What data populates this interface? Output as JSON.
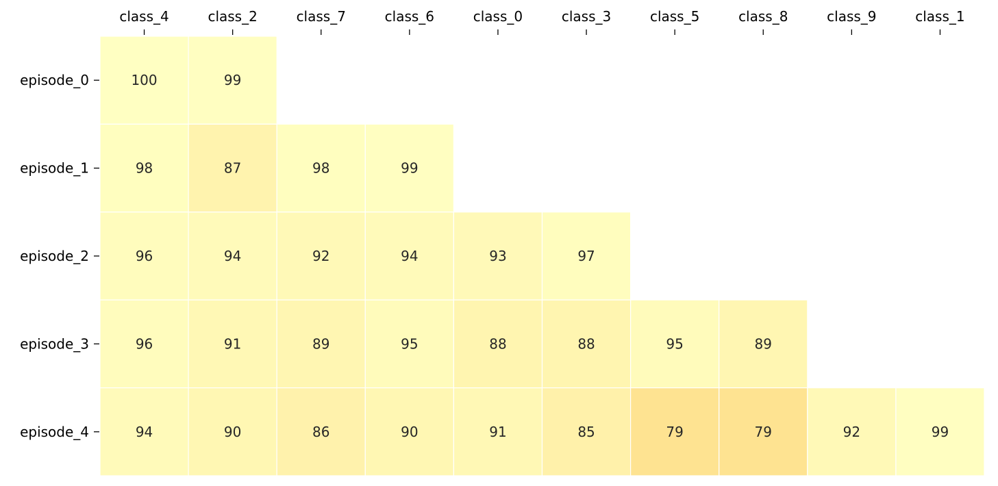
{
  "chart_data": {
    "type": "heatmap",
    "title": "",
    "xlabel": "",
    "ylabel": "",
    "x_tick_position": "top",
    "grid": false,
    "legend": "none",
    "columns": [
      "class_4",
      "class_2",
      "class_7",
      "class_6",
      "class_0",
      "class_3",
      "class_5",
      "class_8",
      "class_9",
      "class_1"
    ],
    "rows": [
      "episode_0",
      "episode_1",
      "episode_2",
      "episode_3",
      "episode_4"
    ],
    "values": [
      [
        100,
        99,
        null,
        null,
        null,
        null,
        null,
        null,
        null,
        null
      ],
      [
        98,
        87,
        98,
        99,
        null,
        null,
        null,
        null,
        null,
        null
      ],
      [
        96,
        94,
        92,
        94,
        93,
        97,
        null,
        null,
        null,
        null
      ],
      [
        96,
        91,
        89,
        95,
        88,
        88,
        95,
        89,
        null,
        null
      ],
      [
        94,
        90,
        86,
        90,
        91,
        85,
        79,
        79,
        92,
        99
      ]
    ],
    "colormap": {
      "low_value": 79,
      "high_value": 100,
      "low_color": "#fee391",
      "high_color": "#ffffc2"
    }
  }
}
